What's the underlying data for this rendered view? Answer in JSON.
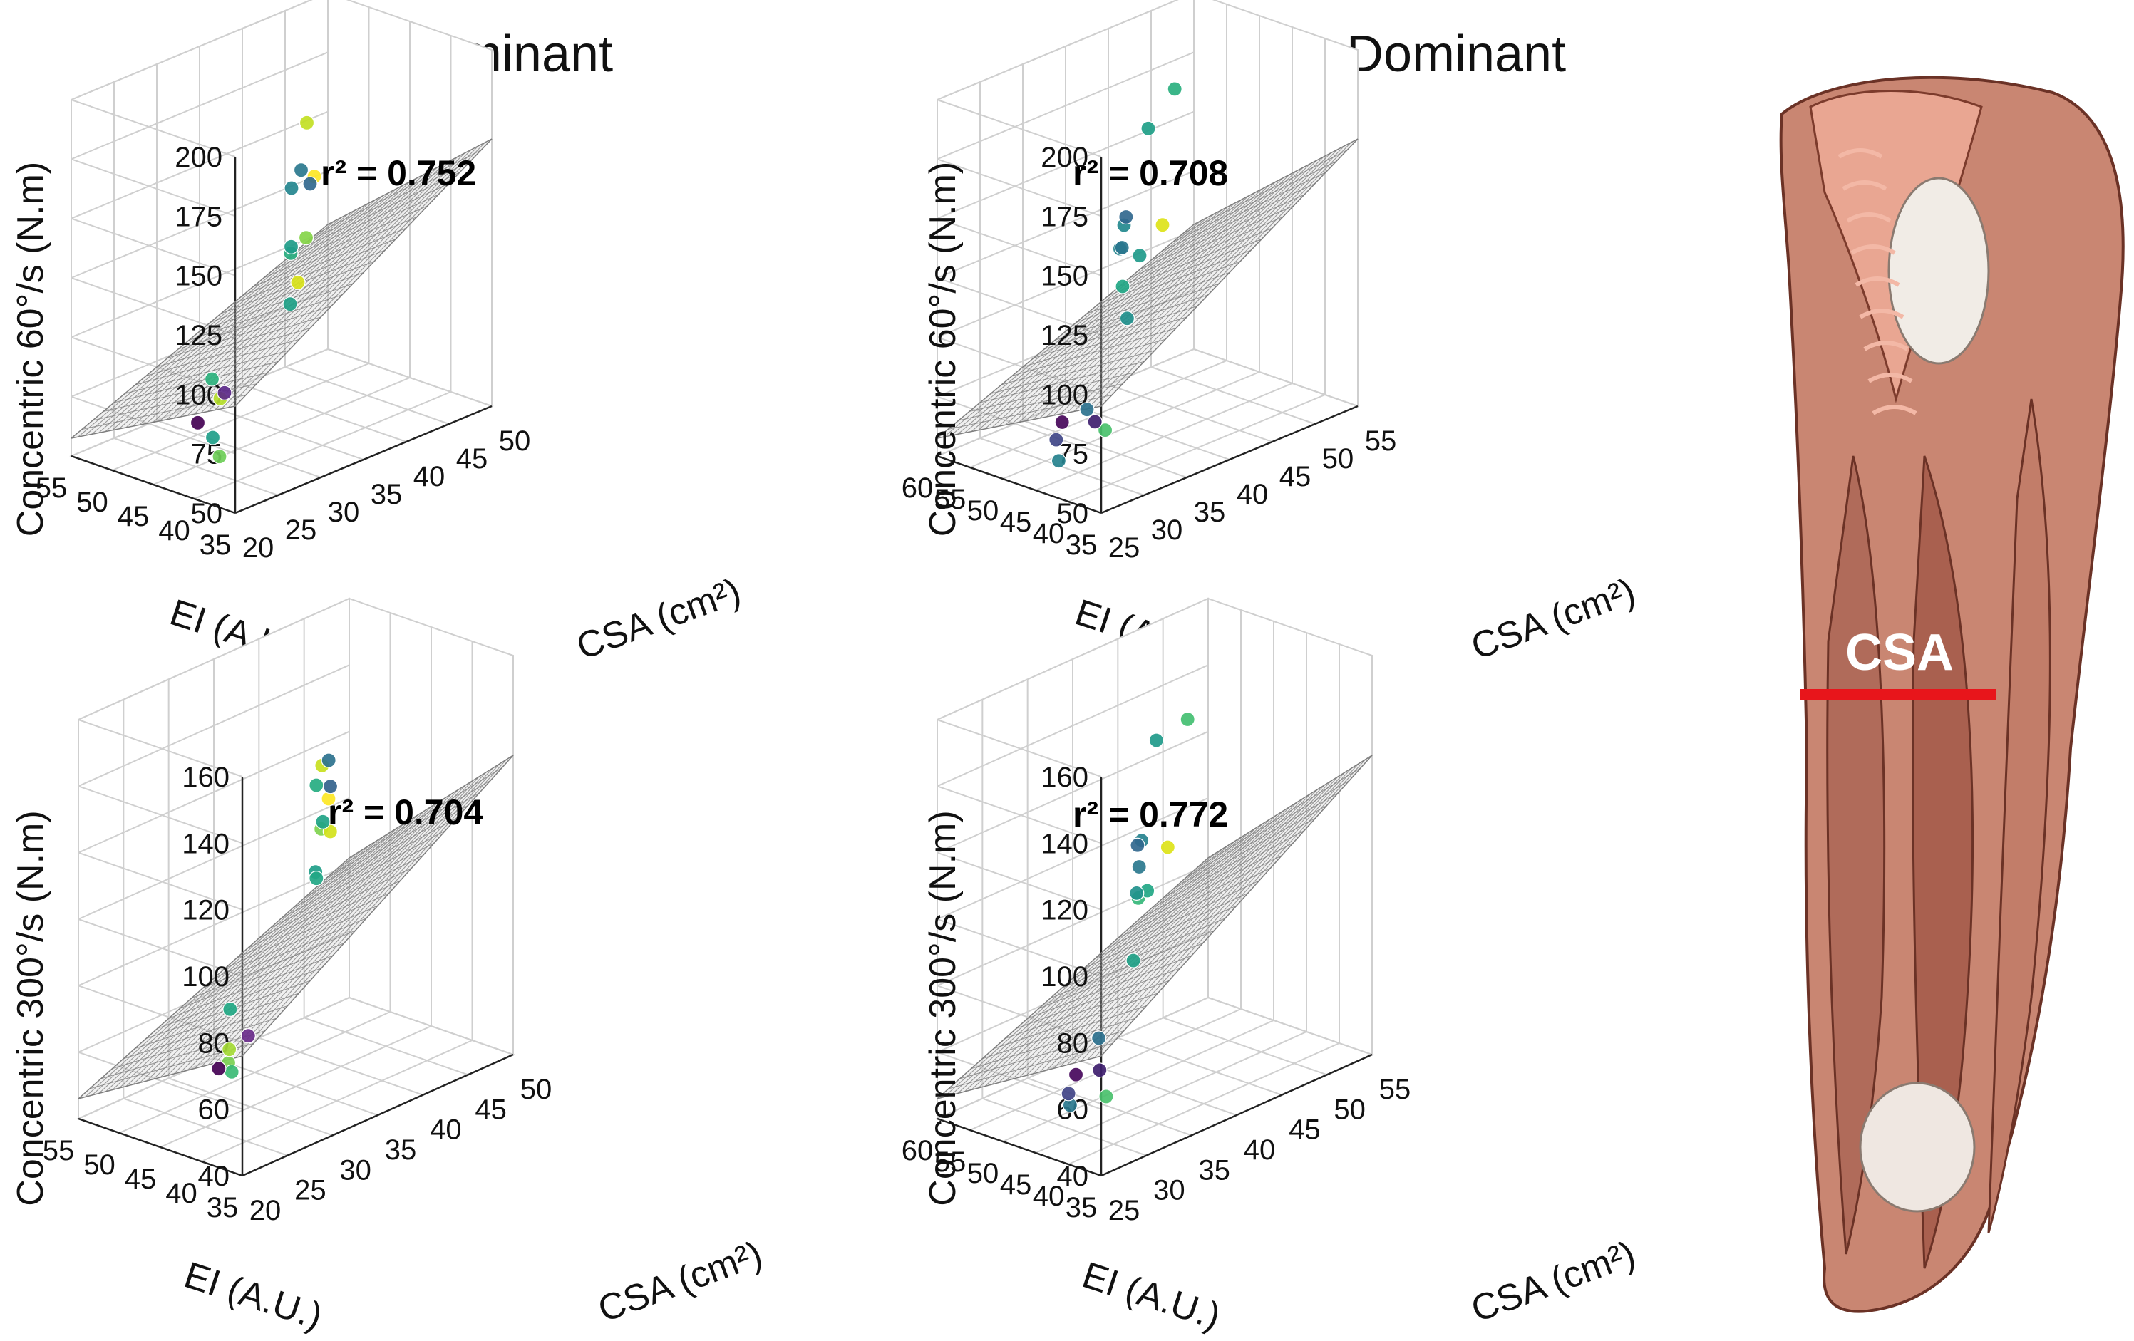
{
  "figure": {
    "column_titles": [
      "Dominant",
      "Non-Dominant"
    ],
    "anatomy": {
      "label": "CSA",
      "marker_color": "#e8151b",
      "description_icon": "thigh-muscle-illustration"
    }
  },
  "colors": {
    "surface_grid": "#7a7a7a",
    "axis": "#222222",
    "grid": "#cfcfcf"
  },
  "chart_data": [
    {
      "panel": "dominant-60",
      "type": "scatter",
      "title": "Dominant",
      "r2_text": "r² = 0.752",
      "r2": 0.752,
      "zlabel": "Concentric 60°/s (N.m)",
      "xlabel": "EI (A.U.)",
      "ylabel": "CSA (cm²)",
      "zticks": [
        "200",
        "175",
        "150",
        "125",
        "100",
        "75",
        "50"
      ],
      "xticks": [
        "55",
        "50",
        "45",
        "40",
        "35"
      ],
      "yticks": [
        "20",
        "25",
        "30",
        "35",
        "40",
        "45",
        "50"
      ],
      "zlim": [
        50,
        200
      ],
      "xlim": [
        35,
        55
      ],
      "ylim": [
        20,
        50
      ],
      "points": [
        {
          "ei": 48,
          "csa": 24,
          "torque": 92,
          "color": "#2db27d"
        },
        {
          "ei": 49,
          "csa": 24,
          "torque": 85,
          "color": "#b5de2b"
        },
        {
          "ei": 51,
          "csa": 22,
          "torque": 66,
          "color": "#6ece58"
        },
        {
          "ei": 46,
          "csa": 26,
          "torque": 62,
          "color": "#1f9e89"
        },
        {
          "ei": 49,
          "csa": 35,
          "torque": 162,
          "color": "#fde725"
        },
        {
          "ei": 46,
          "csa": 37,
          "torque": 178,
          "color": "#c2df23"
        },
        {
          "ei": 48,
          "csa": 35,
          "torque": 135,
          "color": "#86d549"
        },
        {
          "ei": 47,
          "csa": 35,
          "torque": 115,
          "color": "#d8e219"
        },
        {
          "ei": 45,
          "csa": 36,
          "torque": 102,
          "color": "#1fa187"
        },
        {
          "ei": 43,
          "csa": 38,
          "torque": 118,
          "color": "#28ae80"
        },
        {
          "ei": 42,
          "csa": 39,
          "torque": 118,
          "color": "#1e9c89"
        },
        {
          "ei": 41,
          "csa": 40,
          "torque": 140,
          "color": "#24868e"
        },
        {
          "ei": 38,
          "csa": 44,
          "torque": 138,
          "color": "#2a788e"
        },
        {
          "ei": 37,
          "csa": 46,
          "torque": 128,
          "color": "#31688e"
        },
        {
          "ei": 40,
          "csa": 30,
          "torque": 55,
          "color": "#440154"
        },
        {
          "ei": 37,
          "csa": 36,
          "torque": 55,
          "color": "#5c2a8a"
        }
      ]
    },
    {
      "panel": "nondominant-60",
      "type": "scatter",
      "title": "Non-Dominant",
      "r2_text": "r² = 0.708",
      "r2": 0.708,
      "zlabel": "Concentric 60°/s (N.m)",
      "xlabel": "EI (A.U.)",
      "ylabel": "CSA (cm²)",
      "zticks": [
        "200",
        "175",
        "150",
        "125",
        "100",
        "75",
        "50"
      ],
      "xticks": [
        "60",
        "55",
        "50",
        "45",
        "40",
        "35"
      ],
      "yticks": [
        "25",
        "30",
        "35",
        "40",
        "45",
        "50",
        "55"
      ],
      "zlim": [
        50,
        200
      ],
      "xlim": [
        35,
        60
      ],
      "ylim": [
        25,
        55
      ],
      "points": [
        {
          "ei": 58,
          "csa": 27,
          "torque": 80,
          "color": "#4ac16d"
        },
        {
          "ei": 55,
          "csa": 36,
          "torque": 150,
          "color": "#dde318"
        },
        {
          "ei": 50,
          "csa": 31,
          "torque": 75,
          "color": "#2c728e"
        },
        {
          "ei": 47,
          "csa": 30,
          "torque": 52,
          "color": "#26828e"
        },
        {
          "ei": 46,
          "csa": 35,
          "torque": 60,
          "color": "#3f1f6f"
        },
        {
          "ei": 44,
          "csa": 32,
          "torque": 55,
          "color": "#404688"
        },
        {
          "ei": 41,
          "csa": 35,
          "torque": 55,
          "color": "#46075a"
        },
        {
          "ei": 47,
          "csa": 38,
          "torque": 100,
          "color": "#21908d"
        },
        {
          "ei": 45,
          "csa": 39,
          "torque": 110,
          "color": "#22a785"
        },
        {
          "ei": 45,
          "csa": 41,
          "torque": 120,
          "color": "#1f9a8a"
        },
        {
          "ei": 45,
          "csa": 42,
          "torque": 172,
          "color": "#1fa088"
        },
        {
          "ei": 42,
          "csa": 41,
          "torque": 120,
          "color": "#25858e"
        },
        {
          "ei": 41,
          "csa": 42,
          "torque": 118,
          "color": "#2a768e"
        },
        {
          "ei": 40,
          "csa": 43,
          "torque": 125,
          "color": "#23898e"
        },
        {
          "ei": 39,
          "csa": 44,
          "torque": 126,
          "color": "#31688e"
        },
        {
          "ei": 36,
          "csa": 52,
          "torque": 165,
          "color": "#2ab07f"
        }
      ]
    },
    {
      "panel": "dominant-300",
      "type": "scatter",
      "title": "",
      "r2_text": "r² = 0.704",
      "r2": 0.704,
      "zlabel": "Concentric 300°/s (N.m)",
      "xlabel": "EI (A.U.)",
      "ylabel": "CSA (cm²)",
      "zticks": [
        "160",
        "140",
        "120",
        "100",
        "80",
        "60",
        "40"
      ],
      "xticks": [
        "55",
        "50",
        "45",
        "40",
        "35"
      ],
      "yticks": [
        "20",
        "25",
        "30",
        "35",
        "40",
        "45",
        "50"
      ],
      "zlim": [
        40,
        160
      ],
      "xlim": [
        35,
        55
      ],
      "ylim": [
        20,
        50
      ],
      "points": [
        {
          "ei": 48,
          "csa": 25,
          "torque": 78,
          "color": "#22a884"
        },
        {
          "ei": 50,
          "csa": 23,
          "torque": 66,
          "color": "#7ad151"
        },
        {
          "ei": 49,
          "csa": 24,
          "torque": 68,
          "color": "#a5db36"
        },
        {
          "ei": 46,
          "csa": 27,
          "torque": 55,
          "color": "#3bbb75"
        },
        {
          "ei": 49,
          "csa": 35,
          "torque": 130,
          "color": "#fde725"
        },
        {
          "ei": 46,
          "csa": 37,
          "torque": 135,
          "color": "#c8e020"
        },
        {
          "ei": 47,
          "csa": 36,
          "torque": 118,
          "color": "#7fd34e"
        },
        {
          "ei": 47,
          "csa": 37,
          "torque": 116,
          "color": "#d2e21b"
        },
        {
          "ei": 45,
          "csa": 38,
          "torque": 116,
          "color": "#20a386"
        },
        {
          "ei": 42,
          "csa": 40,
          "torque": 122,
          "color": "#26ad81"
        },
        {
          "ei": 43,
          "csa": 39,
          "torque": 98,
          "color": "#1f9e89"
        },
        {
          "ei": 42,
          "csa": 40,
          "torque": 94,
          "color": "#22a785"
        },
        {
          "ei": 38,
          "csa": 45,
          "torque": 120,
          "color": "#2c728e"
        },
        {
          "ei": 36,
          "csa": 47,
          "torque": 108,
          "color": "#33638d"
        },
        {
          "ei": 40,
          "csa": 31,
          "torque": 46,
          "color": "#440154"
        },
        {
          "ei": 37,
          "csa": 37,
          "torque": 46,
          "color": "#6a2c8b"
        }
      ]
    },
    {
      "panel": "nondominant-300",
      "type": "scatter",
      "title": "",
      "r2_text": "r² = 0.772",
      "r2": 0.772,
      "zlabel": "Concentric 300°/s (N.m)",
      "xlabel": "EI (A.U.)",
      "ylabel": "CSA (cm²)",
      "zticks": [
        "160",
        "140",
        "120",
        "100",
        "80",
        "60",
        "40"
      ],
      "xticks": [
        "60",
        "55",
        "50",
        "45",
        "40",
        "35"
      ],
      "yticks": [
        "25",
        "30",
        "35",
        "40",
        "45",
        "50",
        "55"
      ],
      "zlim": [
        40,
        160
      ],
      "xlim": [
        35,
        60
      ],
      "ylim": [
        25,
        55
      ],
      "points": [
        {
          "ei": 58,
          "csa": 27,
          "torque": 60,
          "color": "#4ac16d"
        },
        {
          "ei": 55,
          "csa": 36,
          "torque": 122,
          "color": "#dde318"
        },
        {
          "ei": 50,
          "csa": 32,
          "torque": 66,
          "color": "#2d718e"
        },
        {
          "ei": 47,
          "csa": 31,
          "torque": 45,
          "color": "#2a788e"
        },
        {
          "ei": 46,
          "csa": 35,
          "torque": 50,
          "color": "#3f1f6f"
        },
        {
          "ei": 44,
          "csa": 33,
          "torque": 44,
          "color": "#414487"
        },
        {
          "ei": 41,
          "csa": 36,
          "torque": 44,
          "color": "#46085c"
        },
        {
          "ei": 47,
          "csa": 38,
          "torque": 80,
          "color": "#1fa187"
        },
        {
          "ei": 45,
          "csa": 40,
          "torque": 95,
          "color": "#35b779"
        },
        {
          "ei": 45,
          "csa": 41,
          "torque": 96,
          "color": "#22a785"
        },
        {
          "ei": 45,
          "csa": 42,
          "torque": 140,
          "color": "#1f9a8a"
        },
        {
          "ei": 42,
          "csa": 42,
          "torque": 92,
          "color": "#21918c"
        },
        {
          "ei": 41,
          "csa": 43,
          "torque": 98,
          "color": "#2a788e"
        },
        {
          "ei": 40,
          "csa": 44,
          "torque": 104,
          "color": "#26828e"
        },
        {
          "ei": 38,
          "csa": 45,
          "torque": 100,
          "color": "#31688e"
        },
        {
          "ei": 36,
          "csa": 52,
          "torque": 128,
          "color": "#43bf71"
        }
      ]
    }
  ]
}
